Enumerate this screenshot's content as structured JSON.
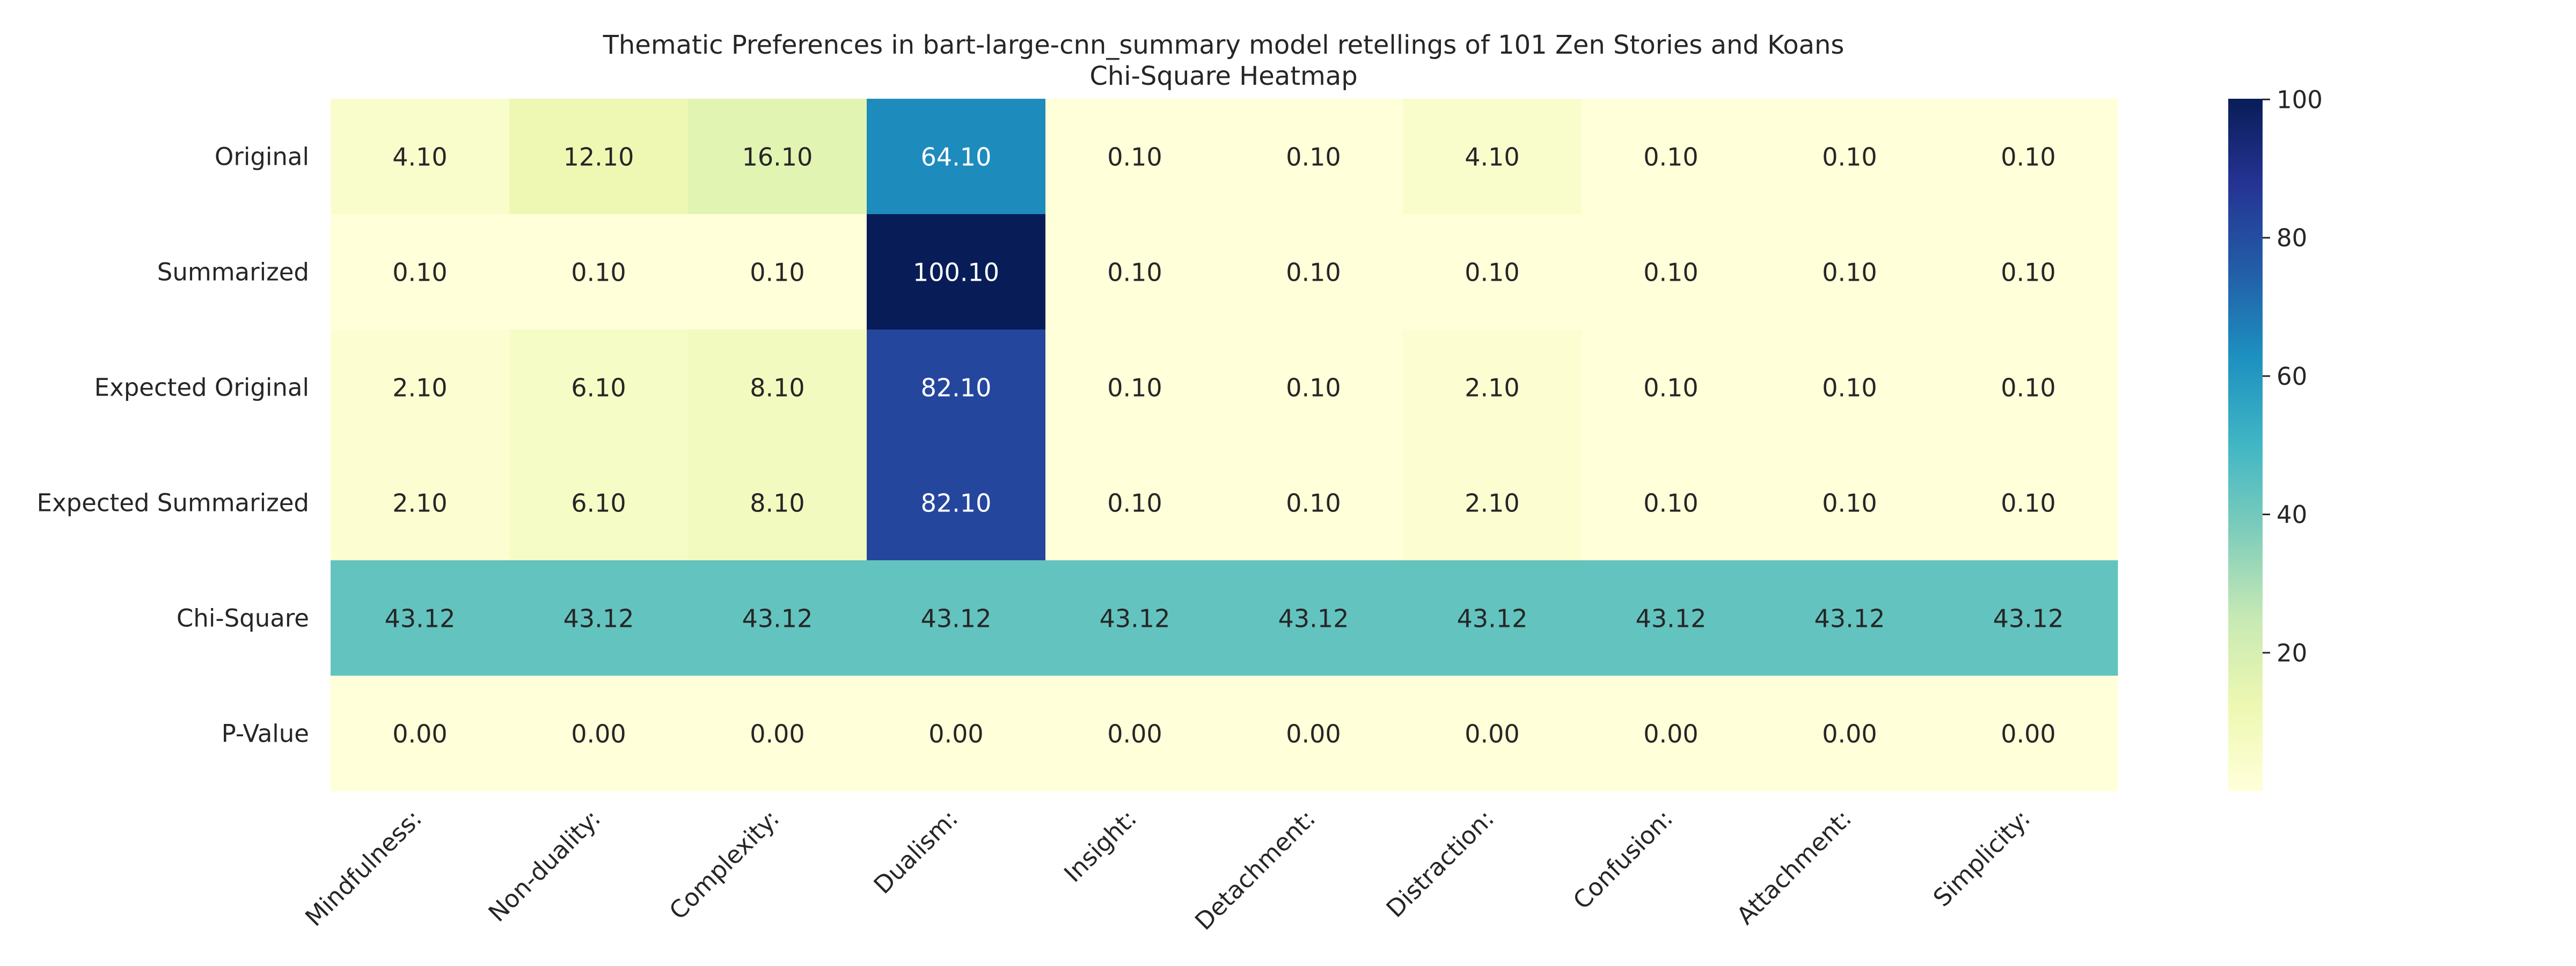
{
  "chart_data": {
    "type": "heatmap",
    "title": "Thematic Preferences in bart-large-cnn_summary model retellings of 101 Zen Stories and Koans",
    "subtitle": "Chi-Square Heatmap",
    "columns": [
      "Mindfulness:",
      "Non-duality:",
      "Complexity:",
      "Dualism:",
      "Insight:",
      "Detachment:",
      "Distraction:",
      "Confusion:",
      "Attachment:",
      "Simplicity:"
    ],
    "rows": [
      "Original",
      "Summarized",
      "Expected Original",
      "Expected Summarized",
      "Chi-Square",
      "P-Value"
    ],
    "values": [
      [
        4.1,
        12.1,
        16.1,
        64.1,
        0.1,
        0.1,
        4.1,
        0.1,
        0.1,
        0.1
      ],
      [
        0.1,
        0.1,
        0.1,
        100.1,
        0.1,
        0.1,
        0.1,
        0.1,
        0.1,
        0.1
      ],
      [
        2.1,
        6.1,
        8.1,
        82.1,
        0.1,
        0.1,
        2.1,
        0.1,
        0.1,
        0.1
      ],
      [
        2.1,
        6.1,
        8.1,
        82.1,
        0.1,
        0.1,
        2.1,
        0.1,
        0.1,
        0.1
      ],
      [
        43.12,
        43.12,
        43.12,
        43.12,
        43.12,
        43.12,
        43.12,
        43.12,
        43.12,
        43.12
      ],
      [
        0.0,
        0.0,
        0.0,
        0.0,
        0.0,
        0.0,
        0.0,
        0.0,
        0.0,
        0.0
      ]
    ],
    "value_format_decimals": 2,
    "colormap": "YlGnBu",
    "color_range": [
      0,
      100.1
    ],
    "colorbar_ticks": [
      20,
      40,
      60,
      80,
      100
    ],
    "colorbar_stops": [
      "#ffffd9",
      "#edf8b1",
      "#c7e9b4",
      "#7fcdbb",
      "#41b6c4",
      "#1d91c0",
      "#225ea8",
      "#253494",
      "#081d58"
    ]
  }
}
